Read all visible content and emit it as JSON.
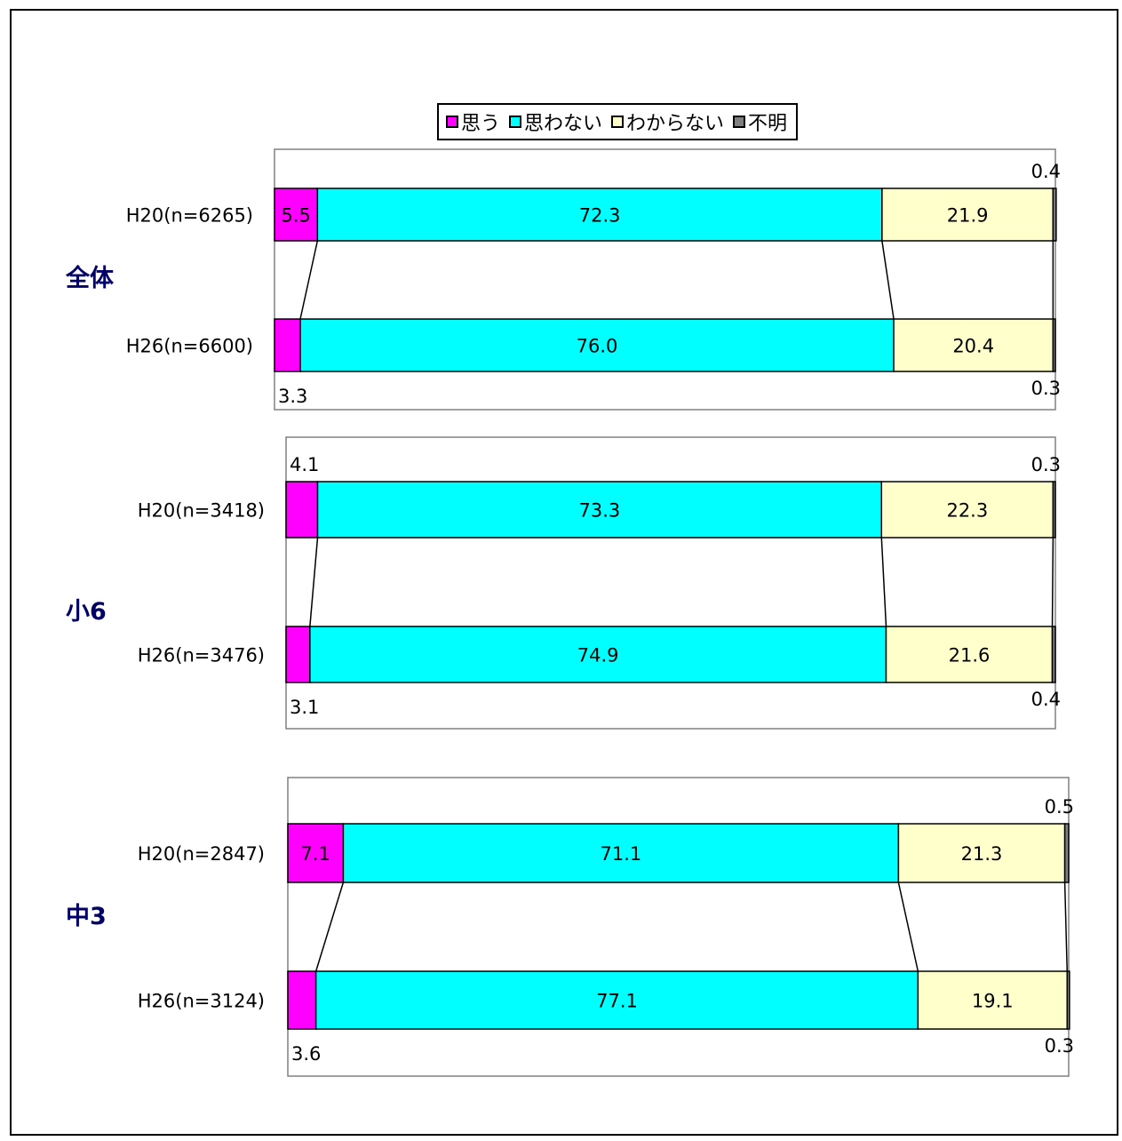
{
  "chart_data": {
    "type": "bar",
    "orientation": "horizontal",
    "stacked": "100%",
    "legend": {
      "placement": "top",
      "entries": [
        {
          "name": "思う",
          "color": "#ff00ff"
        },
        {
          "name": "思わない",
          "color": "#00ffff"
        },
        {
          "name": "わからない",
          "color": "#ffffcc"
        },
        {
          "name": "不明",
          "color": "#808080"
        }
      ]
    },
    "panels": [
      {
        "group": "全体",
        "rows": [
          {
            "label": "H20(n=6265)",
            "values": [
              5.5,
              72.3,
              21.9,
              0.4
            ]
          },
          {
            "label": "H26(n=6600)",
            "values": [
              3.3,
              76.0,
              20.4,
              0.3
            ]
          }
        ]
      },
      {
        "group": "小6",
        "rows": [
          {
            "label": "H20(n=3418)",
            "values": [
              4.1,
              73.3,
              22.3,
              0.3
            ]
          },
          {
            "label": "H26(n=3476)",
            "values": [
              3.1,
              74.9,
              21.6,
              0.4
            ]
          }
        ]
      },
      {
        "group": "中3",
        "rows": [
          {
            "label": "H20(n=2847)",
            "values": [
              7.1,
              71.1,
              21.3,
              0.5
            ]
          },
          {
            "label": "H26(n=3124)",
            "values": [
              3.6,
              77.1,
              19.1,
              0.3
            ]
          }
        ]
      }
    ],
    "value_labels": {
      "inside": [
        [
          "5.5",
          "72.3",
          "21.9",
          null
        ],
        [
          null,
          "76.0",
          "20.4",
          null
        ],
        [
          null,
          "73.3",
          "22.3",
          null
        ],
        [
          null,
          "74.9",
          "21.6",
          null
        ],
        [
          "7.1",
          "71.1",
          "21.3",
          null
        ],
        [
          null,
          "77.1",
          "19.1",
          null
        ]
      ],
      "outside": [
        [
          null,
          null,
          null,
          "0.4"
        ],
        [
          "3.3",
          null,
          null,
          "0.3"
        ],
        [
          "4.1",
          null,
          null,
          "0.3"
        ],
        [
          "3.1",
          null,
          null,
          "0.4"
        ],
        [
          null,
          null,
          null,
          "0.5"
        ],
        [
          "3.6",
          null,
          null,
          "0.3"
        ]
      ]
    },
    "group_label_color": "#000066",
    "connector_lines": true
  }
}
